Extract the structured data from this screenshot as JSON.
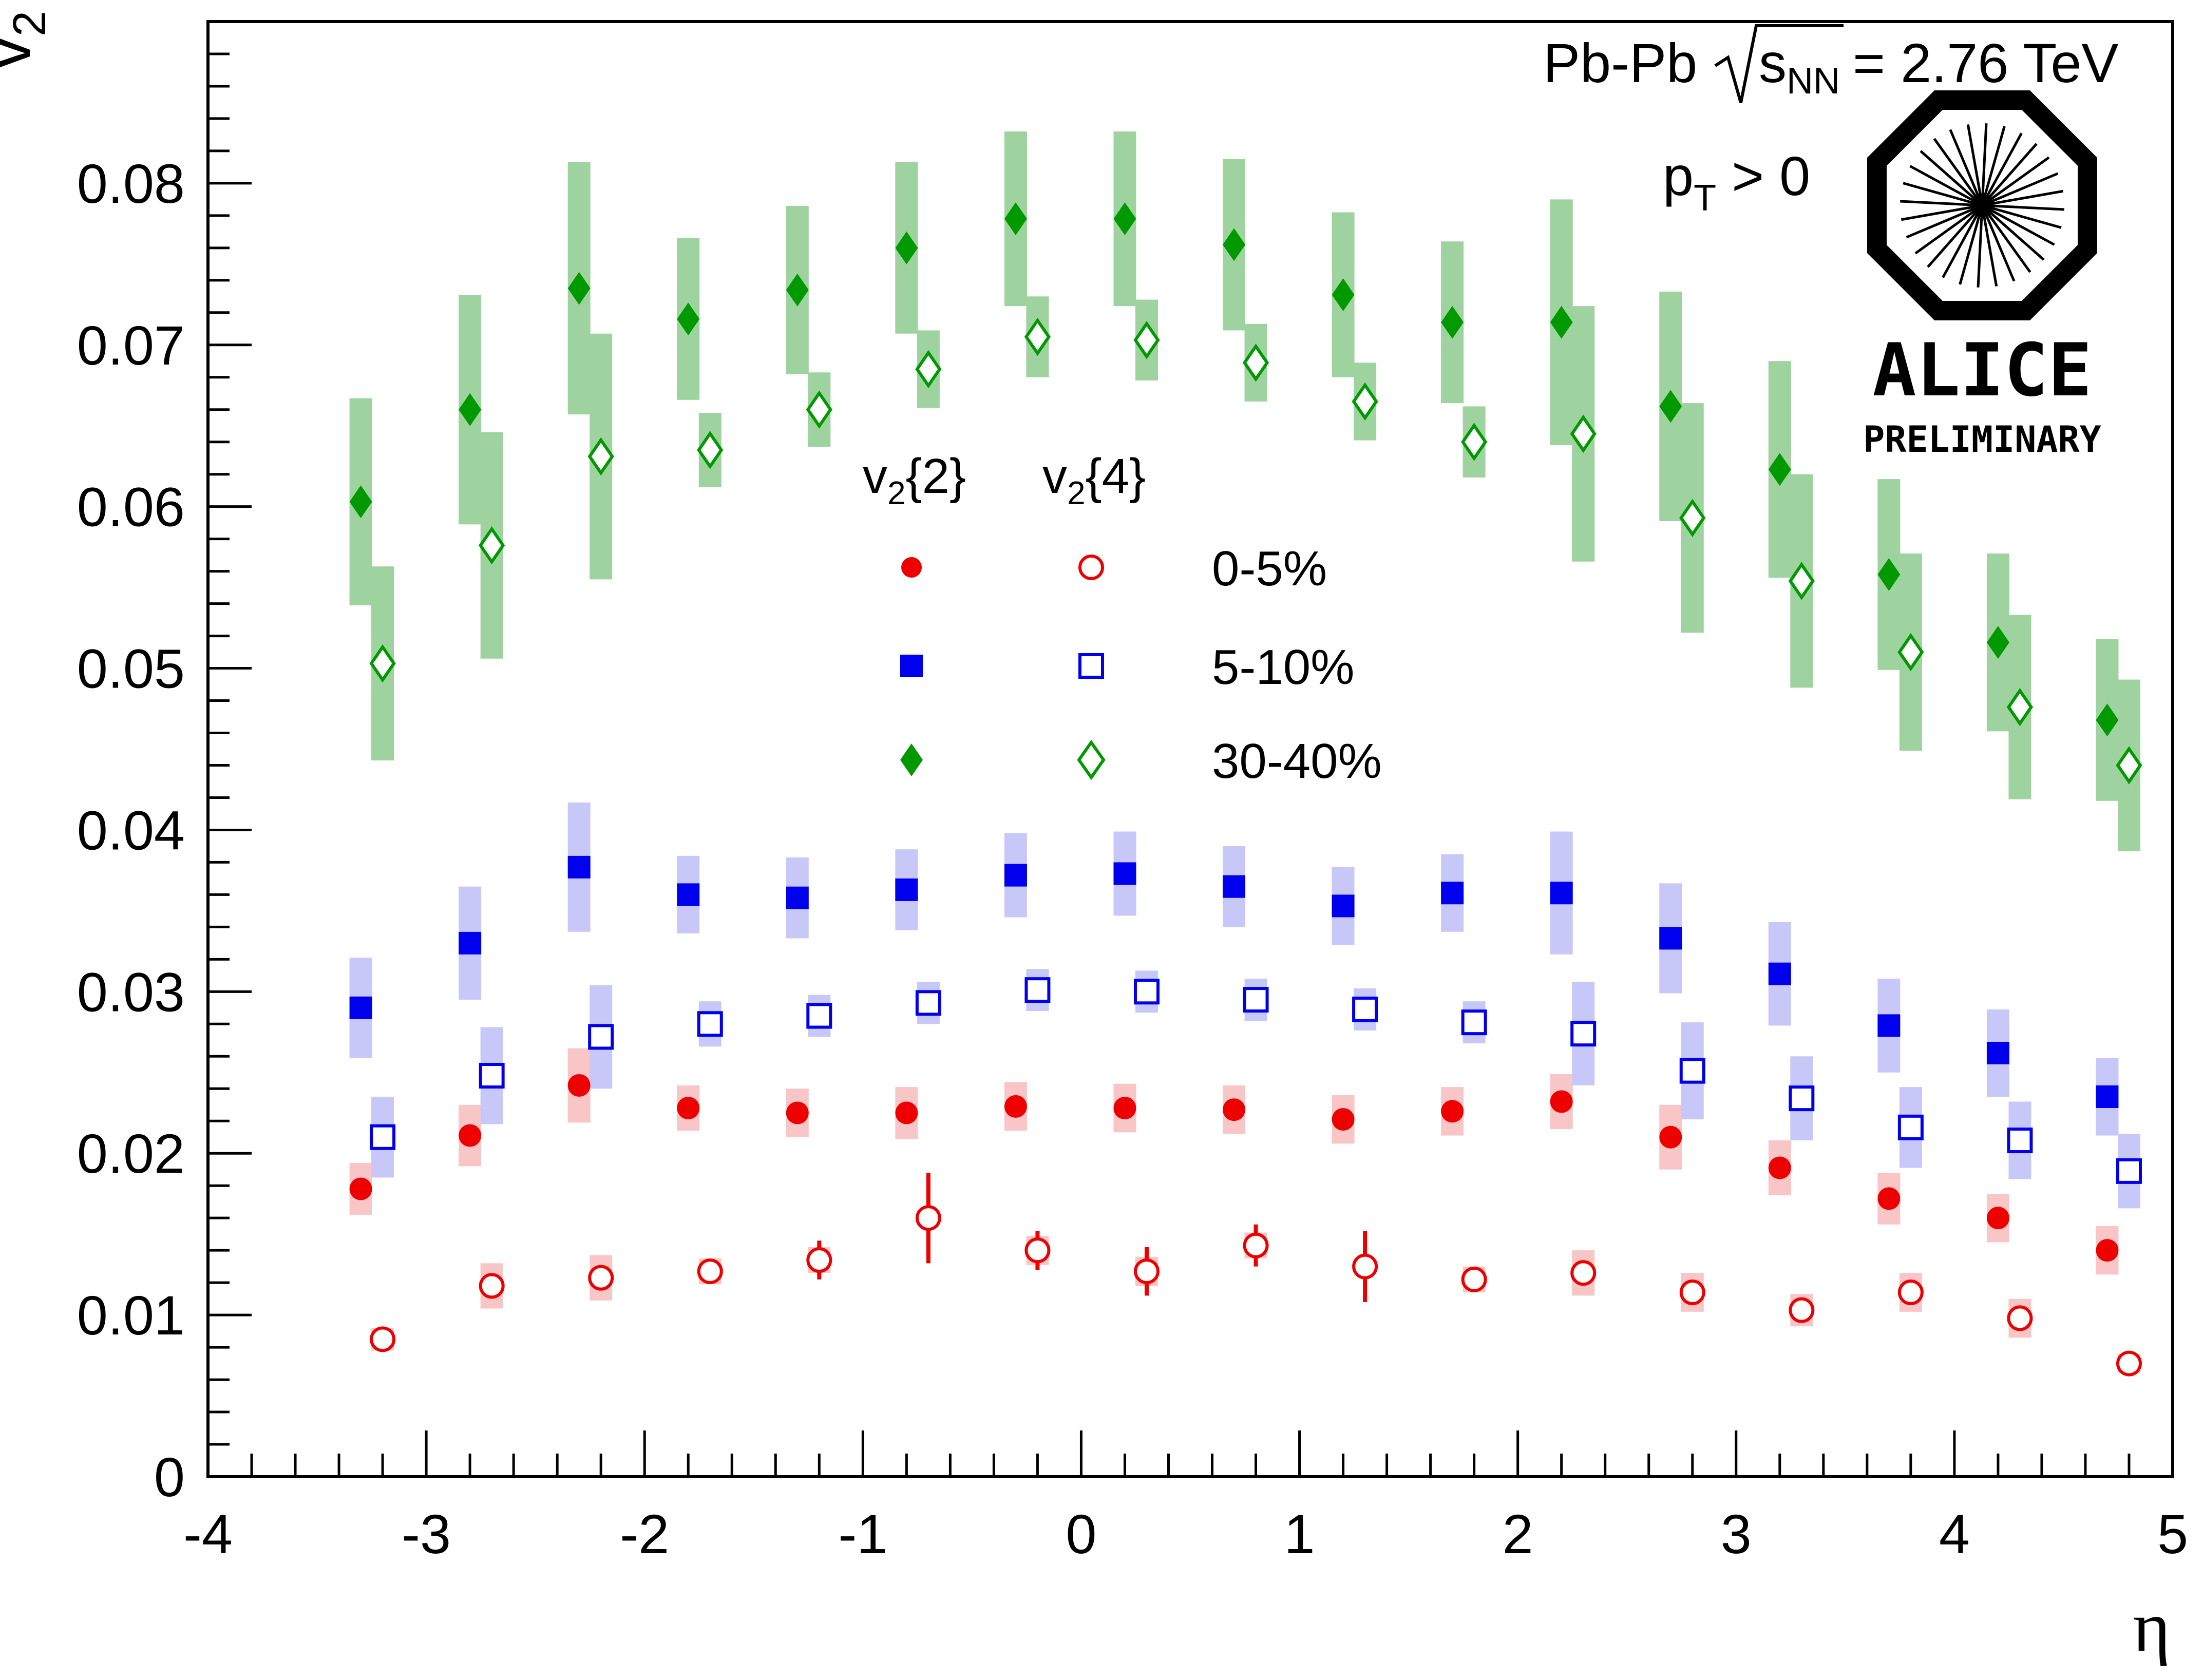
{
  "chart_data": {
    "type": "scatter",
    "title": "",
    "xlabel": "η",
    "ylabel": "v",
    "ylabel_sub": "2",
    "xlim": [
      -4,
      5
    ],
    "ylim": [
      0,
      0.09
    ],
    "xticks": [
      -4,
      -3,
      -2,
      -1,
      0,
      1,
      2,
      3,
      4,
      5
    ],
    "yticks": [
      0,
      0.01,
      0.02,
      0.03,
      0.04,
      0.05,
      0.06,
      0.07,
      0.08
    ],
    "ytick_labels": [
      "0",
      "0.01",
      "0.02",
      "0.03",
      "0.04",
      "0.05",
      "0.06",
      "0.07",
      "0.08"
    ],
    "xtick_labels": [
      "-4",
      "-3",
      "-2",
      "-1",
      "0",
      "1",
      "2",
      "3",
      "4",
      "5"
    ],
    "annotations": {
      "system": "Pb-Pb",
      "energy_s": "s",
      "energy_sub": "NN",
      "energy_value": "= 2.76 TeV",
      "pt_p": "p",
      "pt_sub": "T",
      "pt_rest": "> 0",
      "logo_main": "ALICE",
      "logo_sub": "PRELIMINARY"
    },
    "legend": {
      "position": "center",
      "header_v2_2_main": "v",
      "header_v2_2_sub": "2",
      "header_v2_2_rest": "{2}",
      "header_v2_4_main": "v",
      "header_v2_4_sub": "2",
      "header_v2_4_rest": "{4}",
      "entries": [
        "0-5%",
        "5-10%",
        "30-40%"
      ]
    },
    "colors": {
      "red": "#ee0000",
      "red_band": "#f8c6c6",
      "blue": "#0000ee",
      "blue_band": "#c8c8f8",
      "green": "#009900",
      "green_band": "#9ed29e"
    },
    "series": [
      {
        "name": "v2{2} 0-5%",
        "marker": "circle",
        "filled": true,
        "color": "red",
        "x": [
          -3.3,
          -2.8,
          -2.3,
          -1.8,
          -1.3,
          -0.8,
          -0.3,
          0.2,
          0.7,
          1.2,
          1.7,
          2.2,
          2.7,
          3.2,
          3.7,
          4.2,
          4.7
        ],
        "y": [
          0.0178,
          0.0211,
          0.0242,
          0.0228,
          0.0225,
          0.0225,
          0.0229,
          0.0228,
          0.0227,
          0.0221,
          0.0226,
          0.0232,
          0.021,
          0.0191,
          0.0172,
          0.016,
          0.014
        ],
        "stat": [
          0,
          0,
          0,
          0,
          0,
          0,
          0,
          0,
          0,
          0,
          0,
          0,
          0,
          0,
          0,
          0,
          0
        ],
        "sys": [
          0.0016,
          0.0019,
          0.0023,
          0.0014,
          0.0015,
          0.0016,
          0.0015,
          0.0015,
          0.0015,
          0.0015,
          0.0015,
          0.0017,
          0.002,
          0.0017,
          0.0016,
          0.0015,
          0.0015
        ]
      },
      {
        "name": "v2{4} 0-5%",
        "marker": "circle",
        "filled": false,
        "color": "red",
        "x": [
          -3.2,
          -2.7,
          -2.2,
          -1.7,
          -1.2,
          -0.7,
          -0.2,
          0.3,
          0.8,
          1.3,
          1.8,
          2.3,
          2.8,
          3.3,
          3.8,
          4.3,
          4.8
        ],
        "y": [
          0.0085,
          0.0118,
          0.0123,
          0.0127,
          0.0134,
          0.016,
          0.014,
          0.0127,
          0.0143,
          0.013,
          0.0122,
          0.0126,
          0.0114,
          0.0103,
          0.0114,
          0.0098,
          0.007
        ],
        "stat": [
          0,
          0,
          0,
          0,
          0.0012,
          0.0028,
          0.0012,
          0.0015,
          0.0013,
          0.0022,
          0,
          0,
          0,
          0,
          0,
          0,
          0
        ],
        "sys": [
          0.0007,
          0.0014,
          0.0014,
          0.0008,
          0.0008,
          0,
          0.0009,
          0.0009,
          0.0008,
          0,
          0.0008,
          0.0014,
          0.0012,
          0.001,
          0.0012,
          0.0012,
          0.0006
        ]
      },
      {
        "name": "v2{2} 5-10%",
        "marker": "square",
        "filled": true,
        "color": "blue",
        "x": [
          -3.3,
          -2.8,
          -2.3,
          -1.8,
          -1.3,
          -0.8,
          -0.3,
          0.2,
          0.7,
          1.2,
          1.7,
          2.2,
          2.7,
          3.2,
          3.7,
          4.2,
          4.7
        ],
        "y": [
          0.029,
          0.033,
          0.0377,
          0.036,
          0.0358,
          0.0363,
          0.0372,
          0.0373,
          0.0365,
          0.0353,
          0.0361,
          0.0361,
          0.0333,
          0.0311,
          0.0279,
          0.0262,
          0.0235
        ],
        "stat": [
          0,
          0,
          0,
          0,
          0,
          0,
          0,
          0,
          0,
          0,
          0,
          0,
          0,
          0,
          0,
          0,
          0
        ],
        "sys": [
          0.0031,
          0.0035,
          0.004,
          0.0024,
          0.0025,
          0.0025,
          0.0026,
          0.0026,
          0.0025,
          0.0024,
          0.0024,
          0.0038,
          0.0034,
          0.0032,
          0.0029,
          0.0027,
          0.0024
        ]
      },
      {
        "name": "v2{4} 5-10%",
        "marker": "square",
        "filled": false,
        "color": "blue",
        "x": [
          -3.2,
          -2.7,
          -2.2,
          -1.7,
          -1.2,
          -0.7,
          -0.2,
          0.3,
          0.8,
          1.3,
          1.8,
          2.3,
          2.8,
          3.3,
          3.8,
          4.3,
          4.8
        ],
        "y": [
          0.021,
          0.0248,
          0.0272,
          0.028,
          0.0285,
          0.0293,
          0.0301,
          0.03,
          0.0295,
          0.0289,
          0.0281,
          0.0274,
          0.0251,
          0.0234,
          0.0216,
          0.0208,
          0.0189
        ],
        "stat": [
          0,
          0,
          0,
          0,
          0,
          0,
          0,
          0,
          0,
          0,
          0,
          0,
          0,
          0,
          0,
          0,
          0
        ],
        "sys": [
          0.0025,
          0.003,
          0.0032,
          0.0014,
          0.0013,
          0.0013,
          0.0013,
          0.0013,
          0.0013,
          0.0013,
          0.0013,
          0.0032,
          0.003,
          0.0026,
          0.0025,
          0.0024,
          0.0023
        ]
      },
      {
        "name": "v2{2} 30-40%",
        "marker": "diamond",
        "filled": true,
        "color": "green",
        "x": [
          -3.3,
          -2.8,
          -2.3,
          -1.8,
          -1.3,
          -0.8,
          -0.3,
          0.2,
          0.7,
          1.2,
          1.7,
          2.2,
          2.7,
          3.2,
          3.7,
          4.2,
          4.7
        ],
        "y": [
          0.0603,
          0.066,
          0.0735,
          0.0716,
          0.0734,
          0.076,
          0.0778,
          0.0778,
          0.0762,
          0.0731,
          0.0714,
          0.0714,
          0.0662,
          0.0623,
          0.0558,
          0.0516,
          0.0468
        ],
        "stat": [
          0,
          0,
          0,
          0,
          0,
          0,
          0,
          0,
          0,
          0,
          0,
          0,
          0,
          0,
          0,
          0,
          0
        ],
        "sys": [
          0.0064,
          0.0071,
          0.0078,
          0.005,
          0.0052,
          0.0053,
          0.0054,
          0.0054,
          0.0053,
          0.0051,
          0.005,
          0.0076,
          0.0071,
          0.0067,
          0.0059,
          0.0055,
          0.005
        ]
      },
      {
        "name": "v2{4} 30-40%",
        "marker": "diamond",
        "filled": false,
        "color": "green",
        "x": [
          -3.2,
          -2.7,
          -2.2,
          -1.7,
          -1.2,
          -0.7,
          -0.2,
          0.3,
          0.8,
          1.3,
          1.8,
          2.3,
          2.8,
          3.3,
          3.8,
          4.3,
          4.8
        ],
        "y": [
          0.0503,
          0.0576,
          0.0631,
          0.0635,
          0.066,
          0.0685,
          0.0705,
          0.0703,
          0.0689,
          0.0665,
          0.064,
          0.0645,
          0.0593,
          0.0554,
          0.051,
          0.0476,
          0.044
        ],
        "stat": [
          0,
          0,
          0,
          0,
          0,
          0,
          0,
          0,
          0,
          0,
          0,
          0,
          0,
          0,
          0,
          0,
          0
        ],
        "sys": [
          0.006,
          0.007,
          0.0076,
          0.0023,
          0.0023,
          0.0024,
          0.0025,
          0.0025,
          0.0024,
          0.0024,
          0.0022,
          0.0079,
          0.0071,
          0.0066,
          0.0061,
          0.0057,
          0.0053
        ]
      }
    ]
  }
}
